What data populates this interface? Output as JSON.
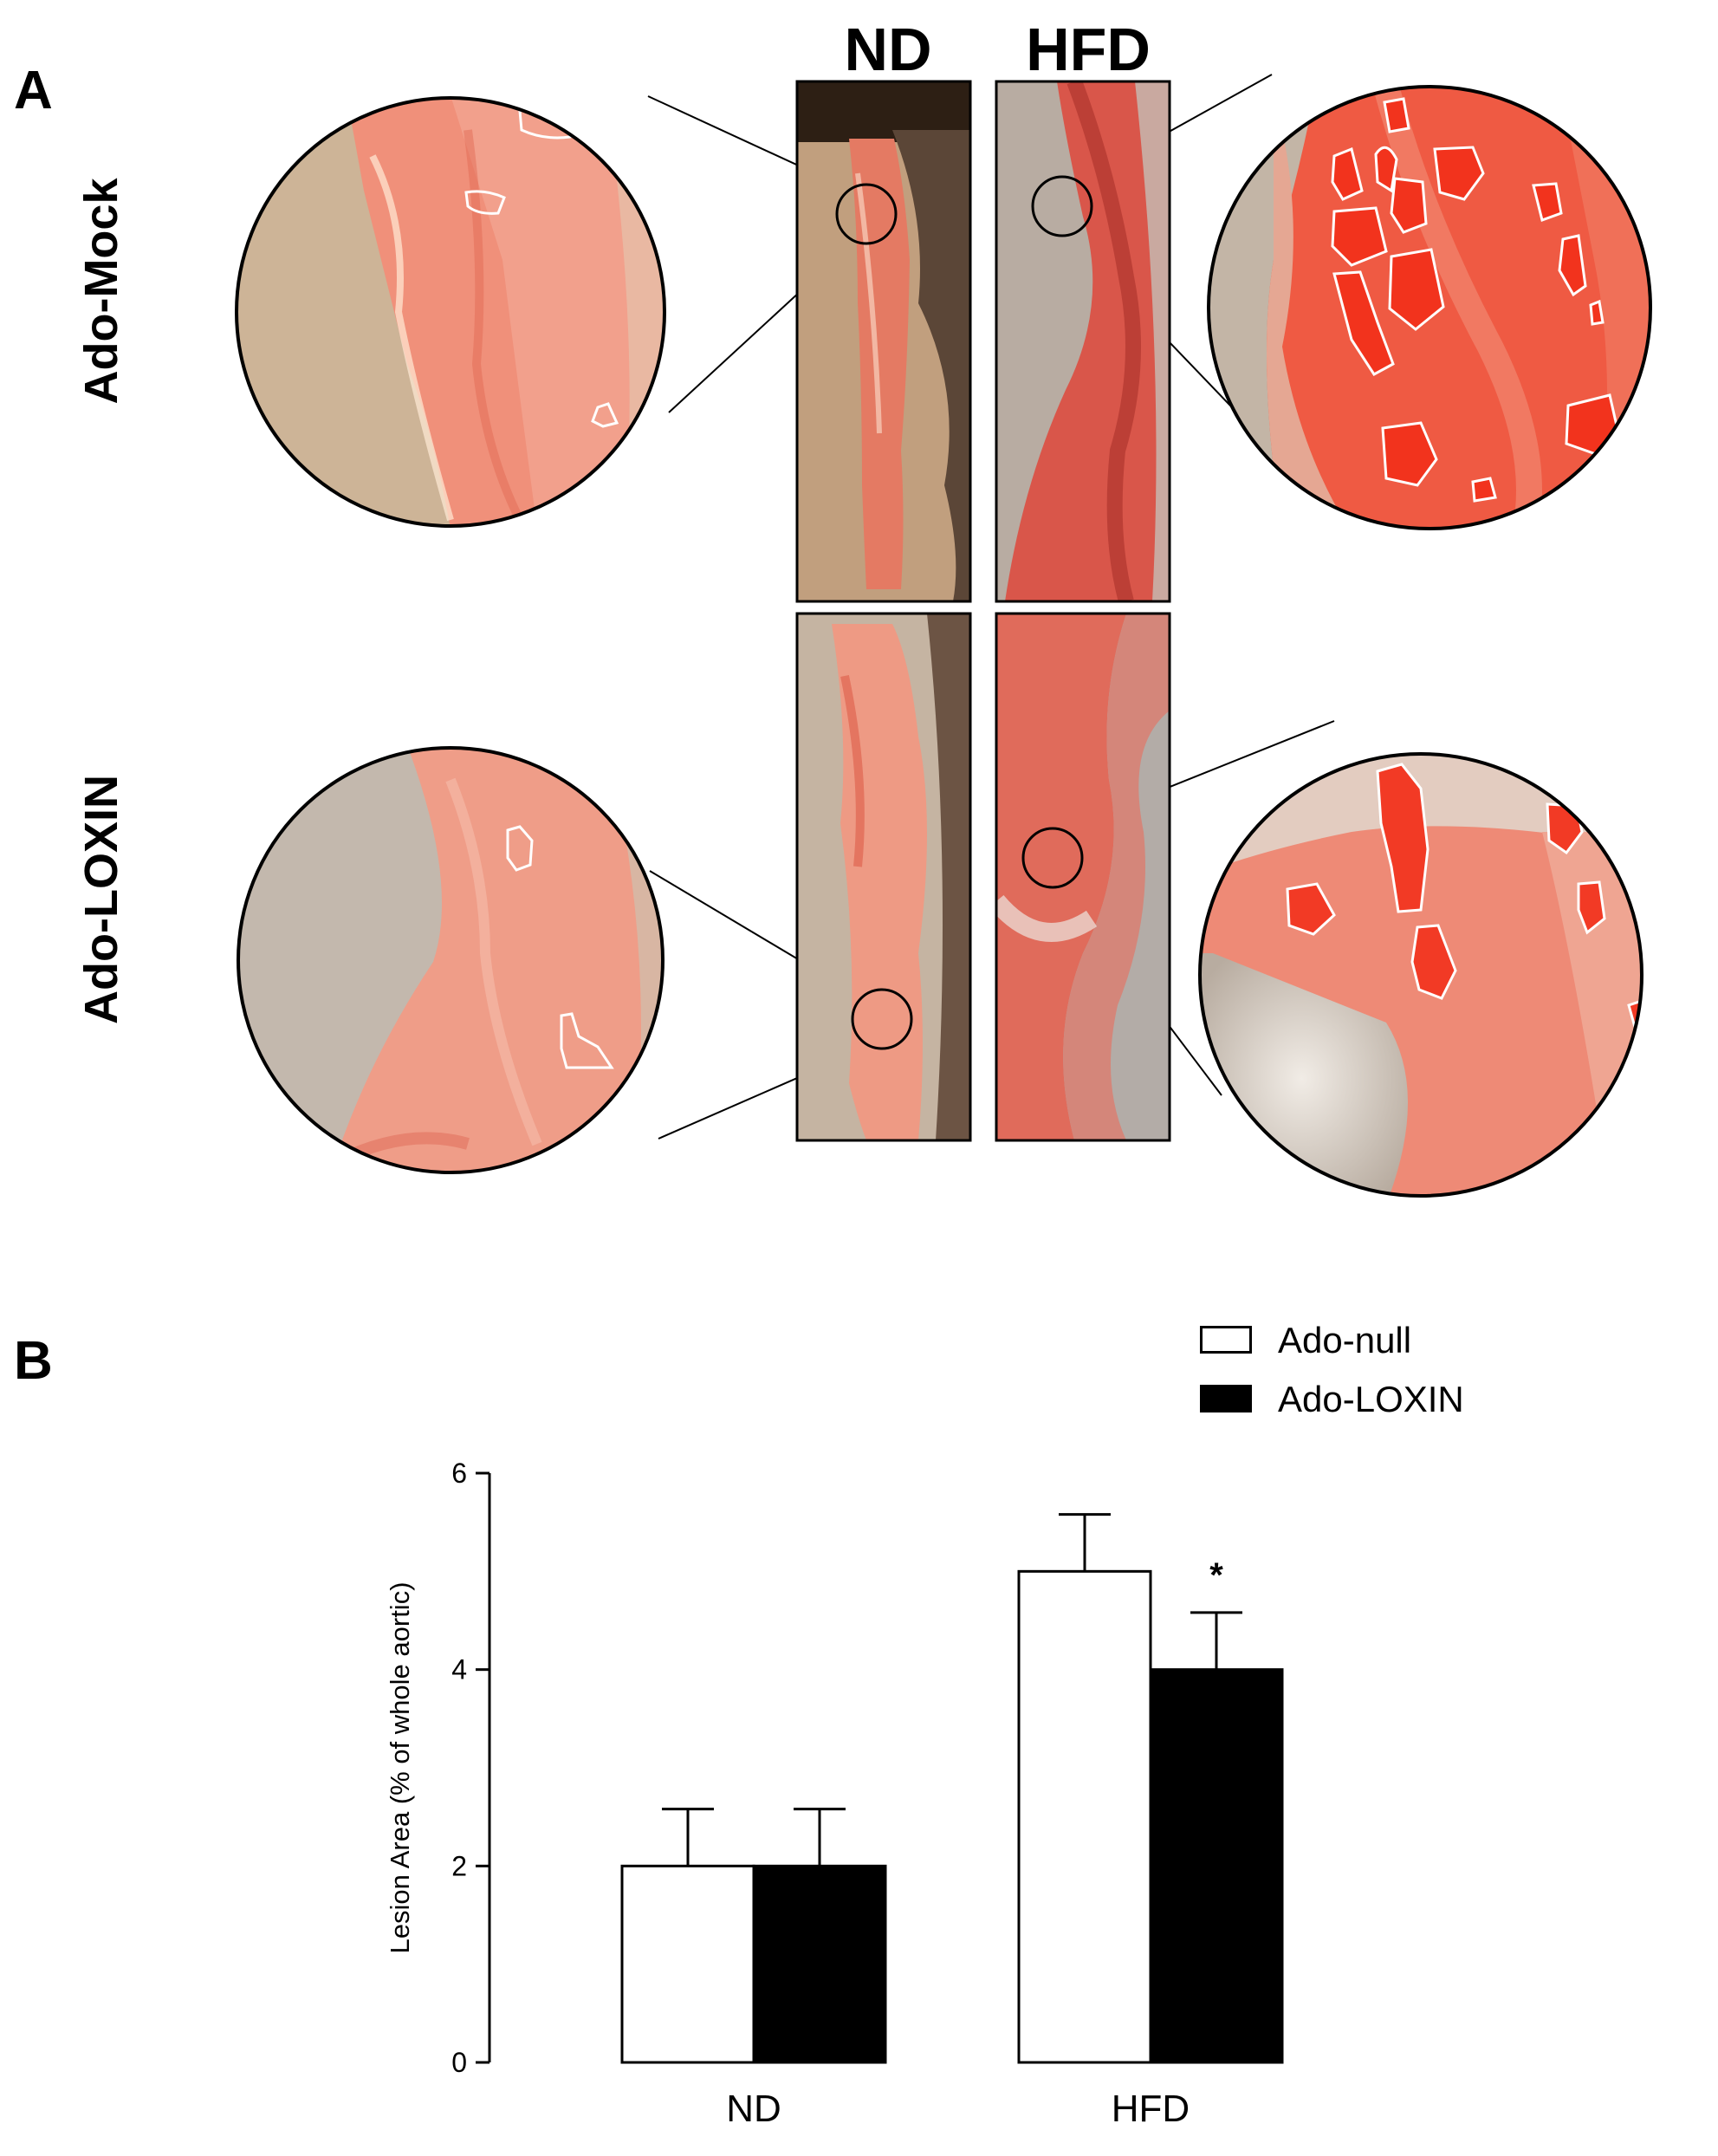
{
  "panel_a": {
    "letter": "A",
    "columns": [
      "ND",
      "HFD"
    ],
    "rows": [
      "Ado-Mock",
      "Ado-LOXIN"
    ]
  },
  "panel_b": {
    "letter": "B",
    "legend": [
      {
        "label": "Ado-null",
        "fill": "#ffffff"
      },
      {
        "label": "Ado-LOXIN",
        "fill": "#000000"
      }
    ]
  },
  "chart_data": {
    "type": "bar",
    "categories": [
      "ND",
      "HFD"
    ],
    "series": [
      {
        "name": "Ado-null",
        "values": [
          2.0,
          5.0
        ],
        "errors": [
          0.58,
          0.58
        ],
        "color": "#ffffff"
      },
      {
        "name": "Ado-LOXIN",
        "values": [
          2.0,
          4.0
        ],
        "errors": [
          0.58,
          0.58
        ],
        "color": "#000000"
      }
    ],
    "ylabel": "Lesion Area (% of whole aortic)",
    "xlabel": "",
    "ylim": [
      0,
      6
    ],
    "yticks": [
      0,
      2,
      4,
      6
    ],
    "annotations": [
      {
        "category": "HFD",
        "series": "Ado-LOXIN",
        "text": "*"
      }
    ],
    "grid": false
  }
}
